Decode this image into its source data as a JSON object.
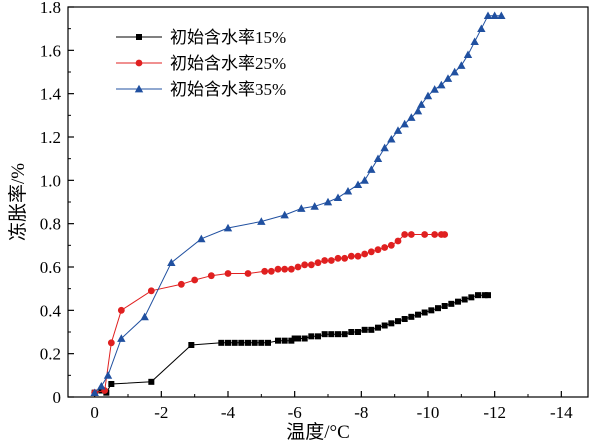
{
  "chart_data": {
    "type": "line",
    "title": "",
    "xlabel": "温度/°C",
    "ylabel": "冻胀率/%",
    "xlim": [
      0.8,
      -14.8
    ],
    "ylim": [
      0,
      1.8
    ],
    "x_ticks": [
      0,
      -2,
      -4,
      -6,
      -8,
      -10,
      -12,
      -14
    ],
    "y_ticks": [
      0,
      0.2,
      0.4,
      0.6,
      0.8,
      1.0,
      1.2,
      1.4,
      1.6,
      1.8
    ],
    "x_tick_labels": [
      "0",
      "-2",
      "-4",
      "-6",
      "-8",
      "-10",
      "-12",
      "-14"
    ],
    "y_tick_labels": [
      "0",
      "0.2",
      "0.4",
      "0.6",
      "0.8",
      "1.0",
      "1.2",
      "1.4",
      "1.6",
      "1.8"
    ],
    "legend_position": "top-left",
    "grid": false,
    "series": [
      {
        "name": "初始含水率15%",
        "color": "#000000",
        "marker": "square",
        "x": [
          0,
          -0.2,
          -0.35,
          -0.5,
          -1.7,
          -2.9,
          -3.8,
          -4.0,
          -4.2,
          -4.4,
          -4.6,
          -4.8,
          -5.0,
          -5.2,
          -5.5,
          -5.7,
          -5.9,
          -6.0,
          -6.1,
          -6.3,
          -6.5,
          -6.7,
          -6.9,
          -7.1,
          -7.3,
          -7.5,
          -7.7,
          -7.9,
          -8.1,
          -8.3,
          -8.5,
          -8.7,
          -8.9,
          -9.1,
          -9.3,
          -9.5,
          -9.7,
          -9.9,
          -10.1,
          -10.3,
          -10.5,
          -10.7,
          -10.9,
          -11.1,
          -11.3,
          -11.5,
          -11.7,
          -11.8
        ],
        "y": [
          0.02,
          0.03,
          0.02,
          0.06,
          0.07,
          0.24,
          0.25,
          0.25,
          0.25,
          0.25,
          0.25,
          0.25,
          0.25,
          0.25,
          0.26,
          0.26,
          0.26,
          0.27,
          0.27,
          0.27,
          0.28,
          0.28,
          0.29,
          0.29,
          0.29,
          0.29,
          0.3,
          0.3,
          0.31,
          0.31,
          0.32,
          0.33,
          0.34,
          0.35,
          0.36,
          0.37,
          0.38,
          0.39,
          0.4,
          0.41,
          0.42,
          0.43,
          0.44,
          0.45,
          0.46,
          0.47,
          0.47,
          0.47
        ]
      },
      {
        "name": "初始含水率25%",
        "color": "#e02020",
        "marker": "circle",
        "x": [
          0,
          -0.3,
          -0.5,
          -0.8,
          -1.7,
          -2.6,
          -3.0,
          -3.5,
          -4.0,
          -4.6,
          -5.1,
          -5.3,
          -5.5,
          -5.7,
          -5.9,
          -6.1,
          -6.3,
          -6.5,
          -6.7,
          -6.9,
          -7.1,
          -7.3,
          -7.5,
          -7.7,
          -7.9,
          -8.1,
          -8.3,
          -8.5,
          -8.7,
          -8.9,
          -9.1,
          -9.3,
          -9.5,
          -9.9,
          -10.2,
          -10.4,
          -10.5
        ],
        "y": [
          0.02,
          0.03,
          0.25,
          0.4,
          0.49,
          0.52,
          0.54,
          0.56,
          0.57,
          0.57,
          0.58,
          0.58,
          0.59,
          0.59,
          0.59,
          0.6,
          0.61,
          0.61,
          0.62,
          0.63,
          0.63,
          0.64,
          0.64,
          0.65,
          0.65,
          0.66,
          0.67,
          0.68,
          0.69,
          0.7,
          0.72,
          0.75,
          0.75,
          0.75,
          0.75,
          0.75,
          0.75
        ]
      },
      {
        "name": "初始含水率35%",
        "color": "#2050a0",
        "marker": "triangle",
        "x": [
          0,
          -0.2,
          -0.4,
          -0.8,
          -1.5,
          -2.3,
          -3.2,
          -4.0,
          -5.0,
          -5.7,
          -6.2,
          -6.6,
          -7.0,
          -7.3,
          -7.6,
          -7.9,
          -8.1,
          -8.3,
          -8.5,
          -8.7,
          -8.9,
          -9.1,
          -9.3,
          -9.5,
          -9.7,
          -9.8,
          -10.0,
          -10.2,
          -10.4,
          -10.6,
          -10.8,
          -11.0,
          -11.2,
          -11.4,
          -11.6,
          -11.8,
          -12.0,
          -12.2
        ],
        "y": [
          0.02,
          0.05,
          0.1,
          0.27,
          0.37,
          0.62,
          0.73,
          0.78,
          0.81,
          0.84,
          0.87,
          0.88,
          0.9,
          0.92,
          0.95,
          0.98,
          1.0,
          1.05,
          1.1,
          1.15,
          1.19,
          1.23,
          1.26,
          1.29,
          1.32,
          1.35,
          1.39,
          1.42,
          1.44,
          1.47,
          1.5,
          1.53,
          1.58,
          1.64,
          1.7,
          1.76,
          1.76,
          1.76
        ]
      }
    ]
  }
}
